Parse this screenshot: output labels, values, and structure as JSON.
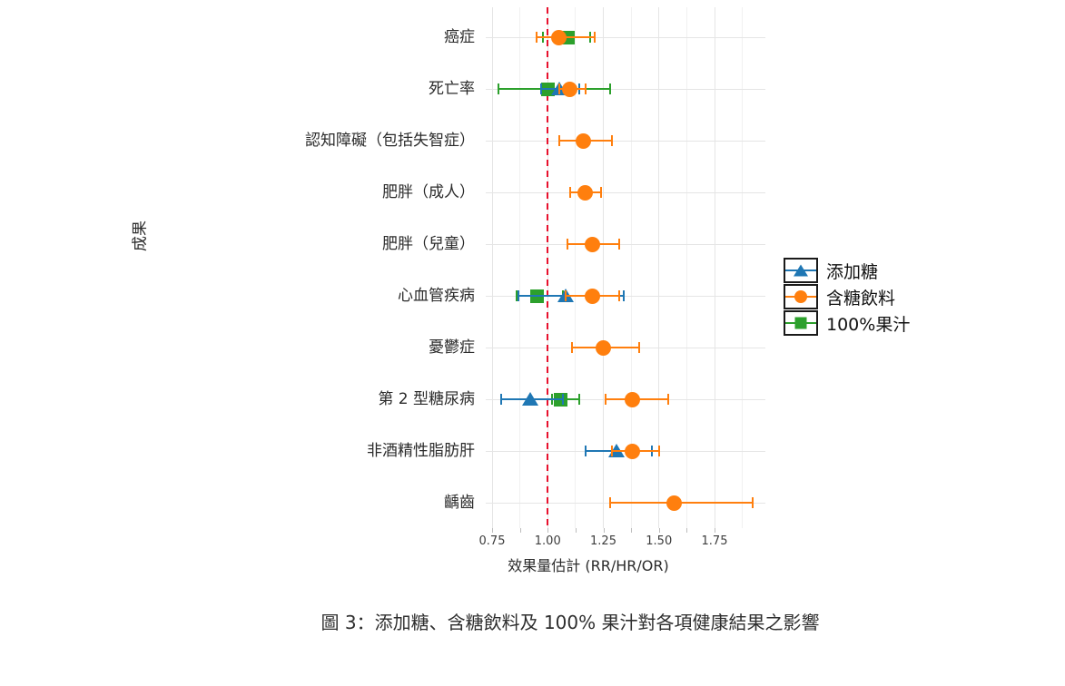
{
  "figure": {
    "caption": "圖 3：添加糖、含糖飲料及 100% 果汁對各項健康結果之影響"
  },
  "chart_data": {
    "type": "scatter",
    "subtype": "forest-plot-with-error-bars",
    "title": "",
    "xlabel": "效果量估計 (RR/HR/OR)",
    "ylabel": "成果",
    "xlim": [
      0.73,
      1.97
    ],
    "grid": true,
    "legend_position": "right",
    "x_tick_major": [
      0.75,
      1.0,
      1.25,
      1.5,
      1.75
    ],
    "x_tick_labels": [
      "0.75",
      "1.00",
      "1.25",
      "1.50",
      "1.75"
    ],
    "x_ticks": [
      0.75,
      0.875,
      1.0,
      1.125,
      1.25,
      1.375,
      1.5,
      1.625,
      1.75
    ],
    "x_gridlines_major": [
      0.75,
      1.0,
      1.25,
      1.5,
      1.75
    ],
    "x_gridlines_minor": [
      0.875,
      1.125,
      1.375,
      1.625,
      1.875
    ],
    "reference_line": {
      "x": 1.0,
      "style": "dashed",
      "color": "#e8112d"
    },
    "categories": [
      "癌症",
      "死亡率",
      "認知障礙（包括失智症）",
      "肥胖（成人）",
      "肥胖（兒童）",
      "心血管疾病",
      "憂鬱症",
      "第 2 型糖尿病",
      "非酒精性脂肪肝",
      "齲齒"
    ],
    "series": [
      {
        "name": "添加糖",
        "marker": "triangle",
        "color": "#1f77b4",
        "points": [
          {
            "category": "死亡率",
            "est": 1.05,
            "low": 0.97,
            "high": 1.14
          },
          {
            "category": "心血管疾病",
            "est": 1.08,
            "low": 0.87,
            "high": 1.34
          },
          {
            "category": "第 2 型糖尿病",
            "est": 0.92,
            "low": 0.79,
            "high": 1.07
          },
          {
            "category": "非酒精性脂肪肝",
            "est": 1.31,
            "low": 1.17,
            "high": 1.47
          }
        ]
      },
      {
        "name": "含糖飲料",
        "marker": "circle",
        "color": "#ff7f0e",
        "points": [
          {
            "category": "癌症",
            "est": 1.05,
            "low": 0.95,
            "high": 1.21
          },
          {
            "category": "死亡率",
            "est": 1.1,
            "low": 1.05,
            "high": 1.17
          },
          {
            "category": "認知障礙（包括失智症）",
            "est": 1.16,
            "low": 1.05,
            "high": 1.29
          },
          {
            "category": "肥胖（成人）",
            "est": 1.17,
            "low": 1.1,
            "high": 1.24
          },
          {
            "category": "肥胖（兒童）",
            "est": 1.2,
            "low": 1.09,
            "high": 1.32
          },
          {
            "category": "心血管疾病",
            "est": 1.2,
            "low": 1.08,
            "high": 1.32
          },
          {
            "category": "憂鬱症",
            "est": 1.25,
            "low": 1.11,
            "high": 1.41
          },
          {
            "category": "第 2 型糖尿病",
            "est": 1.38,
            "low": 1.26,
            "high": 1.54
          },
          {
            "category": "非酒精性脂肪肝",
            "est": 1.38,
            "low": 1.29,
            "high": 1.5
          },
          {
            "category": "齲齒",
            "est": 1.57,
            "low": 1.28,
            "high": 1.92
          }
        ]
      },
      {
        "name": "100%果汁",
        "marker": "square",
        "color": "#2ca02c",
        "points": [
          {
            "category": "癌症",
            "est": 1.09,
            "low": 0.98,
            "high": 1.19
          },
          {
            "category": "死亡率",
            "est": 1.0,
            "low": 0.78,
            "high": 1.28
          },
          {
            "category": "心血管疾病",
            "est": 0.95,
            "low": 0.86,
            "high": 1.07
          },
          {
            "category": "第 2 型糖尿病",
            "est": 1.06,
            "low": 1.02,
            "high": 1.14
          }
        ]
      }
    ]
  }
}
